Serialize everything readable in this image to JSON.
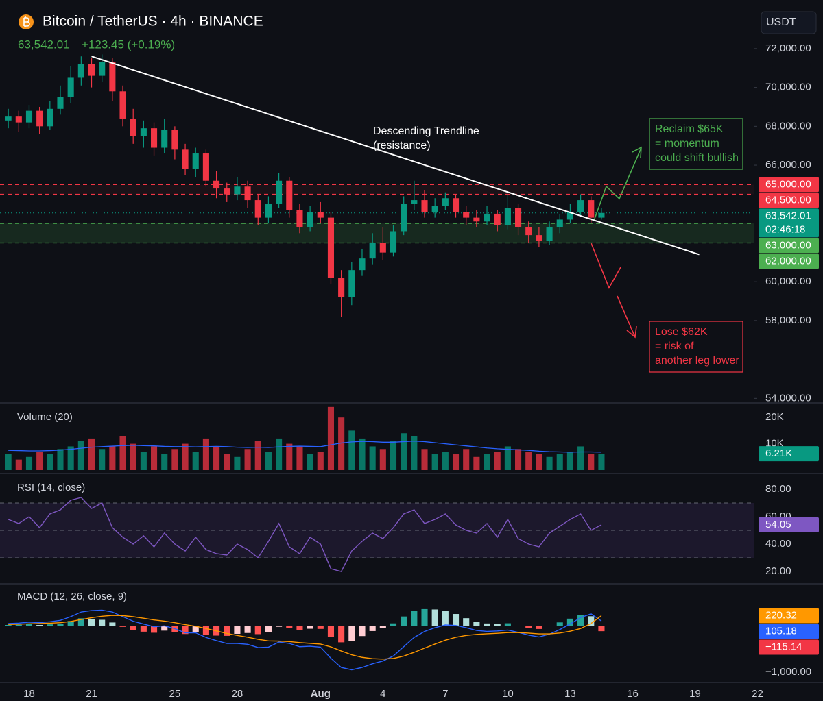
{
  "header": {
    "symbol": "Bitcoin / TetherUS · 4h · BINANCE",
    "price": "63,542.01",
    "change": "+123.45 (+0.19%)",
    "currency": "USDT"
  },
  "chart_data": [
    {
      "type": "candlestick",
      "x": [
        -1,
        -0.5,
        0,
        0.5,
        1,
        1.5,
        2,
        2.5,
        3,
        3.5,
        4,
        4.5,
        5,
        5.5,
        6,
        6.5,
        7,
        7.5,
        8,
        8.5,
        9,
        9.5,
        10,
        10.5,
        11,
        11.5,
        12,
        12.5,
        13,
        13.5,
        14,
        14.5,
        15,
        15.5,
        16,
        16.5,
        17,
        17.5,
        18,
        18.5,
        19,
        19.5,
        20,
        20.5,
        21,
        21.5,
        22,
        22.5,
        23,
        23.5,
        24,
        24.5,
        25,
        25.5,
        26,
        26.5,
        27,
        27.5
      ],
      "open": [
        68300,
        68500,
        68200,
        68800,
        68000,
        68900,
        69500,
        70500,
        71200,
        70600,
        71300,
        69800,
        68400,
        67500,
        67900,
        66900,
        67800,
        66800,
        65800,
        66600,
        65200,
        64800,
        64500,
        64900,
        64200,
        63300,
        64000,
        65200,
        63700,
        62800,
        63600,
        63300,
        60200,
        59200,
        60600,
        61200,
        62000,
        61500,
        62600,
        64000,
        64200,
        63600,
        63900,
        64300,
        63600,
        63300,
        63100,
        63500,
        62900,
        63800,
        62800,
        62400,
        62100,
        62800,
        63200,
        63600,
        64200,
        63300
      ],
      "high": [
        68900,
        68800,
        69100,
        69000,
        69300,
        70100,
        71100,
        71600,
        71500,
        71700,
        71500,
        70100,
        68900,
        68300,
        68200,
        68400,
        68000,
        67100,
        66900,
        66800,
        65700,
        65100,
        65400,
        65200,
        64500,
        64400,
        65600,
        65400,
        64000,
        63900,
        64100,
        63600,
        60600,
        61000,
        61700,
        62500,
        62800,
        62900,
        64400,
        65200,
        64700,
        64300,
        64600,
        64500,
        63900,
        63700,
        63900,
        63700,
        64500,
        64000,
        63100,
        62800,
        63100,
        63500,
        64000,
        64500,
        64400,
        63800
      ],
      "low": [
        67900,
        67700,
        67900,
        67600,
        67800,
        68600,
        69200,
        70100,
        70000,
        70300,
        69300,
        68000,
        67100,
        66900,
        66500,
        66600,
        66300,
        65500,
        65400,
        64900,
        64300,
        64100,
        64200,
        63800,
        62900,
        63000,
        63800,
        63300,
        62500,
        62600,
        63000,
        59900,
        58200,
        58800,
        60300,
        60900,
        61100,
        61300,
        62400,
        63700,
        63300,
        63300,
        63700,
        63300,
        62900,
        62800,
        62900,
        62600,
        62700,
        62400,
        62000,
        61800,
        61900,
        62500,
        63000,
        63400,
        63000,
        63200
      ],
      "close": [
        68500,
        68200,
        68800,
        68000,
        68900,
        69500,
        70500,
        71200,
        70600,
        71300,
        69800,
        68400,
        67500,
        67900,
        66900,
        67800,
        66800,
        65800,
        66600,
        65200,
        64800,
        64500,
        64900,
        64200,
        63300,
        64000,
        65200,
        63700,
        62800,
        63600,
        63300,
        60200,
        59200,
        60600,
        61200,
        62000,
        61500,
        62600,
        64000,
        64200,
        63600,
        63900,
        64300,
        63600,
        63300,
        63100,
        63500,
        62900,
        63800,
        62800,
        62400,
        62100,
        62800,
        63200,
        63600,
        64200,
        63300,
        63542.01
      ],
      "up_color": "#089981",
      "down_color": "#f23645",
      "xlim": [
        -1.4,
        36.4
      ],
      "xticks": [
        {
          "value": 0,
          "label": "18"
        },
        {
          "value": 3,
          "label": "21"
        },
        {
          "value": 7,
          "label": "25"
        },
        {
          "value": 10,
          "label": "28"
        },
        {
          "value": 14,
          "label": "Aug"
        },
        {
          "value": 17,
          "label": "4"
        },
        {
          "value": 20,
          "label": "7"
        },
        {
          "value": 23,
          "label": "10"
        },
        {
          "value": 26,
          "label": "13"
        },
        {
          "value": 29,
          "label": "16"
        },
        {
          "value": 32,
          "label": "19"
        },
        {
          "value": 35,
          "label": "22"
        }
      ],
      "ylim": [
        53800,
        74500
      ],
      "yticks": [
        {
          "value": 72000,
          "label": "72,000.00"
        },
        {
          "value": 70000,
          "label": "70,000.00"
        },
        {
          "value": 68000,
          "label": "68,000.00"
        },
        {
          "value": 66000,
          "label": "66,000.00"
        },
        {
          "value": 60000,
          "label": "60,000.00"
        },
        {
          "value": 58000,
          "label": "58,000.00"
        },
        {
          "value": 54000,
          "label": "54,000.00"
        }
      ],
      "levels": [
        {
          "value": 65000,
          "label": "65,000.00",
          "color": "#f23645"
        },
        {
          "value": 64500,
          "label": "64,500.00",
          "color": "#f23645"
        },
        {
          "value": 63000,
          "label": "63,000.00",
          "color": "#4caf50"
        },
        {
          "value": 62000,
          "label": "62,000.00",
          "color": "#4caf50"
        }
      ],
      "current": {
        "value": 63542.01,
        "label": "63,542.01",
        "countdown": "02:46:18",
        "color": "#089981"
      },
      "trendline": {
        "x": [
          3,
          32.2
        ],
        "y": [
          71600,
          61400
        ],
        "color": "#ffffff"
      },
      "annotations": [
        {
          "lines": [
            "Descending Trendline",
            "(resistance)"
          ],
          "color": "#ffffff"
        },
        {
          "lines": [
            "Reclaim $65K",
            "= momentum",
            "could shift bullish"
          ],
          "color": "#4caf50"
        },
        {
          "lines": [
            "Lose $62K",
            "= risk of",
            "another leg lower"
          ],
          "color": "#f23645"
        }
      ]
    },
    {
      "type": "bar",
      "title": "Volume (20)",
      "values": [
        6000,
        4000,
        5000,
        7000,
        6000,
        8000,
        9000,
        11000,
        12000,
        8000,
        9000,
        13000,
        10000,
        7000,
        9000,
        6000,
        8000,
        10000,
        7000,
        12000,
        9000,
        6000,
        5000,
        8000,
        11000,
        7000,
        12000,
        10000,
        9000,
        6000,
        7000,
        24000,
        20000,
        15000,
        12000,
        9000,
        8000,
        11000,
        14000,
        13000,
        8000,
        6000,
        7000,
        6000,
        8000,
        5000,
        6000,
        7000,
        9000,
        8000,
        7000,
        6000,
        5000,
        6000,
        7000,
        9000,
        6000,
        6210
      ],
      "ma": [
        7500,
        7400,
        7300,
        7300,
        7400,
        7600,
        7900,
        8300,
        8700,
        8900,
        9100,
        9300,
        9400,
        9300,
        9200,
        9000,
        8900,
        8900,
        8800,
        8900,
        9000,
        8900,
        8700,
        8600,
        8700,
        8600,
        8800,
        9000,
        9100,
        9000,
        8900,
        9600,
        10300,
        10700,
        10900,
        10800,
        10600,
        10600,
        10800,
        11000,
        10800,
        10400,
        10000,
        9600,
        9200,
        8800,
        8400,
        8100,
        7900,
        7700,
        7500,
        7200,
        7000,
        6900,
        6800,
        6900,
        6900,
        6800
      ],
      "ma_color": "#2962ff",
      "ylim": [
        0,
        25000
      ],
      "yticks": [
        {
          "value": 20000,
          "label": "20K"
        },
        {
          "value": 10000,
          "label": "10K"
        }
      ],
      "current": {
        "value": 6210,
        "label": "6.21K",
        "color": "#089981"
      }
    },
    {
      "type": "line",
      "title": "RSI (14, close)",
      "color": "#7e57c2",
      "values": [
        58,
        55,
        60,
        52,
        62,
        65,
        72,
        74,
        66,
        70,
        52,
        45,
        40,
        46,
        38,
        48,
        40,
        35,
        45,
        36,
        33,
        32,
        40,
        36,
        30,
        42,
        55,
        38,
        33,
        45,
        40,
        22,
        20,
        35,
        42,
        48,
        44,
        52,
        62,
        65,
        55,
        58,
        62,
        54,
        50,
        48,
        55,
        45,
        58,
        44,
        40,
        38,
        48,
        53,
        58,
        62,
        50,
        54.05
      ],
      "ylim": [
        13,
        87
      ],
      "yticks": [
        {
          "value": 80,
          "label": "80.00"
        },
        {
          "value": 60,
          "label": "60.00"
        },
        {
          "value": 40,
          "label": "40.00"
        },
        {
          "value": 20,
          "label": "20.00"
        }
      ],
      "levels": [
        70,
        50,
        30
      ],
      "current": {
        "value": 54.05
      }
    },
    {
      "type": "macd",
      "title": "MACD (12, 26, close, 9)",
      "series": [
        {
          "color": "#2962ff",
          "values": [
            50,
            60,
            80,
            70,
            90,
            120,
            200,
            300,
            330,
            340,
            300,
            200,
            100,
            40,
            -20,
            0,
            -60,
            -150,
            -150,
            -250,
            -320,
            -380,
            -380,
            -400,
            -470,
            -460,
            -350,
            -380,
            -450,
            -440,
            -460,
            -700,
            -900,
            -950,
            -900,
            -820,
            -760,
            -650,
            -450,
            -250,
            -120,
            -40,
            20,
            10,
            -40,
            -100,
            -120,
            -110,
            -90,
            -140,
            -200,
            -240,
            -180,
            -80,
            40,
            180,
            260,
            105.18
          ]
        },
        {
          "color": "#ff9800",
          "values": [
            30,
            36,
            45,
            50,
            58,
            70,
            96,
            137,
            176,
            209,
            227,
            222,
            198,
            166,
            129,
            103,
            70,
            26,
            -9,
            -57,
            -110,
            -164,
            -207,
            -246,
            -291,
            -325,
            -330,
            -340,
            -362,
            -378,
            -394,
            -455,
            -544,
            -625,
            -680,
            -708,
            -718,
            -704,
            -653,
            -572,
            -482,
            -394,
            -311,
            -247,
            -206,
            -185,
            -172,
            -160,
            -146,
            -145,
            -156,
            -173,
            -174,
            -155,
            -116,
            -57,
            52,
            220.32
          ]
        }
      ],
      "hist": [
        20,
        24,
        35,
        20,
        32,
        50,
        104,
        163,
        154,
        131,
        73,
        -22,
        -98,
        -126,
        -149,
        -103,
        -130,
        -176,
        -141,
        -193,
        -210,
        -216,
        -173,
        -154,
        -179,
        -135,
        -20,
        -40,
        -88,
        -62,
        -66,
        -245,
        -356,
        -325,
        -220,
        -112,
        -42,
        54,
        203,
        322,
        362,
        354,
        331,
        257,
        166,
        85,
        52,
        50,
        56,
        5,
        -44,
        -67,
        -6,
        75,
        156,
        237,
        208,
        -115.14
      ],
      "hist_last_label": "−115.14",
      "hist_color": "#f23645",
      "ylim": [
        -1180,
        850
      ],
      "yticks": [
        {
          "value": -1000,
          "label": "−1,000.00"
        }
      ]
    }
  ]
}
